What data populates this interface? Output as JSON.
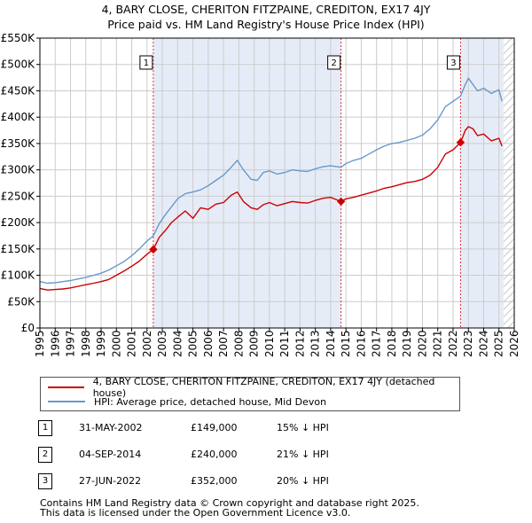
{
  "title_line1": "4, BARY CLOSE, CHERITON FITZPAINE, CREDITON, EX17 4JY",
  "title_line2": "Price paid vs. HM Land Registry's House Price Index (HPI)",
  "colors": {
    "property": "#cc0000",
    "hpi": "#6699cc",
    "shade": "#e6ecf7",
    "grid": "#cccccc",
    "marker_line": "#dd3333"
  },
  "legend": {
    "property": "4, BARY CLOSE, CHERITON FITZPAINE, CREDITON, EX17 4JY (detached house)",
    "hpi": "HPI: Average price, detached house, Mid Devon"
  },
  "sales": [
    {
      "num": "1",
      "date": "31-MAY-2002",
      "price": "£149,000",
      "hpi": "15% ↓ HPI"
    },
    {
      "num": "2",
      "date": "04-SEP-2014",
      "price": "£240,000",
      "hpi": "21% ↓ HPI"
    },
    {
      "num": "3",
      "date": "27-JUN-2022",
      "price": "£352,000",
      "hpi": "20% ↓ HPI"
    }
  ],
  "footer_line1": "Contains HM Land Registry data © Crown copyright and database right 2025.",
  "footer_line2": "This data is licensed under the Open Government Licence v3.0.",
  "chart_data": {
    "type": "line",
    "x_range": [
      1995,
      2026
    ],
    "ylim": [
      0,
      550000
    ],
    "y_ticks": [
      0,
      50000,
      100000,
      150000,
      200000,
      250000,
      300000,
      350000,
      400000,
      450000,
      500000,
      550000
    ],
    "y_tick_labels": [
      "£0",
      "£50K",
      "£100K",
      "£150K",
      "£200K",
      "£250K",
      "£300K",
      "£350K",
      "£400K",
      "£450K",
      "£500K",
      "£550K"
    ],
    "x_ticks": [
      1995,
      1996,
      1997,
      1998,
      1999,
      2000,
      2001,
      2002,
      2003,
      2004,
      2005,
      2006,
      2007,
      2008,
      2009,
      2010,
      2011,
      2012,
      2013,
      2014,
      2015,
      2016,
      2017,
      2018,
      2019,
      2020,
      2021,
      2022,
      2023,
      2024,
      2025,
      2026
    ],
    "grid": true,
    "shaded_ranges": [
      [
        2002.41,
        2014.68
      ],
      [
        2022.49,
        2025.3
      ]
    ],
    "hatched_range": [
      2025.3,
      2026
    ],
    "sale_markers": [
      {
        "label": "1",
        "x": 2002.41,
        "y": 149000
      },
      {
        "label": "2",
        "x": 2014.68,
        "y": 240000
      },
      {
        "label": "3",
        "x": 2022.49,
        "y": 352000
      }
    ],
    "series": [
      {
        "name": "4, BARY CLOSE, CHERITON FITZPAINE, CREDITON, EX17 4JY (detached house)",
        "color": "#cc0000",
        "x": [
          1995.0,
          1995.5,
          1996.0,
          1996.5,
          1997.0,
          1997.5,
          1998.0,
          1998.5,
          1999.0,
          1999.5,
          2000.0,
          2000.5,
          2001.0,
          2001.5,
          2002.0,
          2002.41,
          2002.8,
          2003.2,
          2003.6,
          2004.0,
          2004.5,
          2005.0,
          2005.5,
          2006.0,
          2006.5,
          2007.0,
          2007.5,
          2007.9,
          2008.3,
          2008.8,
          2009.2,
          2009.6,
          2010.0,
          2010.5,
          2011.0,
          2011.5,
          2012.0,
          2012.5,
          2013.0,
          2013.5,
          2014.0,
          2014.68,
          2015.0,
          2015.5,
          2016.0,
          2016.5,
          2017.0,
          2017.5,
          2018.0,
          2018.5,
          2019.0,
          2019.5,
          2020.0,
          2020.5,
          2021.0,
          2021.5,
          2022.0,
          2022.49,
          2022.8,
          2023.0,
          2023.3,
          2023.6,
          2024.0,
          2024.5,
          2025.0,
          2025.2
        ],
        "y": [
          75000,
          72000,
          73000,
          74000,
          76000,
          79000,
          82000,
          85000,
          88000,
          92000,
          100000,
          108000,
          117000,
          127000,
          140000,
          149000,
          172000,
          185000,
          200000,
          210000,
          222000,
          208000,
          228000,
          225000,
          235000,
          238000,
          252000,
          258000,
          240000,
          228000,
          225000,
          234000,
          238000,
          232000,
          236000,
          240000,
          238000,
          237000,
          242000,
          246000,
          248000,
          240000,
          245000,
          248000,
          252000,
          256000,
          260000,
          265000,
          268000,
          272000,
          276000,
          278000,
          282000,
          290000,
          305000,
          330000,
          338000,
          352000,
          375000,
          382000,
          378000,
          365000,
          368000,
          355000,
          360000,
          345000
        ]
      },
      {
        "name": "HPI: Average price, detached house, Mid Devon",
        "color": "#6699cc",
        "x": [
          1995.0,
          1995.5,
          1996.0,
          1996.5,
          1997.0,
          1997.5,
          1998.0,
          1998.5,
          1999.0,
          1999.5,
          2000.0,
          2000.5,
          2001.0,
          2001.5,
          2002.0,
          2002.41,
          2002.8,
          2003.2,
          2003.6,
          2004.0,
          2004.5,
          2005.0,
          2005.5,
          2006.0,
          2006.5,
          2007.0,
          2007.5,
          2007.9,
          2008.3,
          2008.8,
          2009.2,
          2009.6,
          2010.0,
          2010.5,
          2011.0,
          2011.5,
          2012.0,
          2012.5,
          2013.0,
          2013.5,
          2014.0,
          2014.68,
          2015.0,
          2015.5,
          2016.0,
          2016.5,
          2017.0,
          2017.5,
          2018.0,
          2018.5,
          2019.0,
          2019.5,
          2020.0,
          2020.5,
          2021.0,
          2021.5,
          2022.0,
          2022.49,
          2022.8,
          2023.0,
          2023.3,
          2023.6,
          2024.0,
          2024.5,
          2025.0,
          2025.2
        ],
        "y": [
          88000,
          85000,
          86000,
          88000,
          90000,
          93000,
          96000,
          100000,
          104000,
          110000,
          118000,
          126000,
          137000,
          150000,
          165000,
          175000,
          198000,
          215000,
          230000,
          245000,
          255000,
          258000,
          262000,
          270000,
          280000,
          290000,
          305000,
          318000,
          300000,
          282000,
          280000,
          295000,
          298000,
          292000,
          295000,
          300000,
          298000,
          297000,
          302000,
          306000,
          308000,
          305000,
          312000,
          318000,
          322000,
          330000,
          338000,
          345000,
          350000,
          352000,
          356000,
          360000,
          366000,
          378000,
          395000,
          420000,
          430000,
          440000,
          462000,
          474000,
          462000,
          450000,
          455000,
          445000,
          452000,
          430000
        ]
      }
    ]
  }
}
